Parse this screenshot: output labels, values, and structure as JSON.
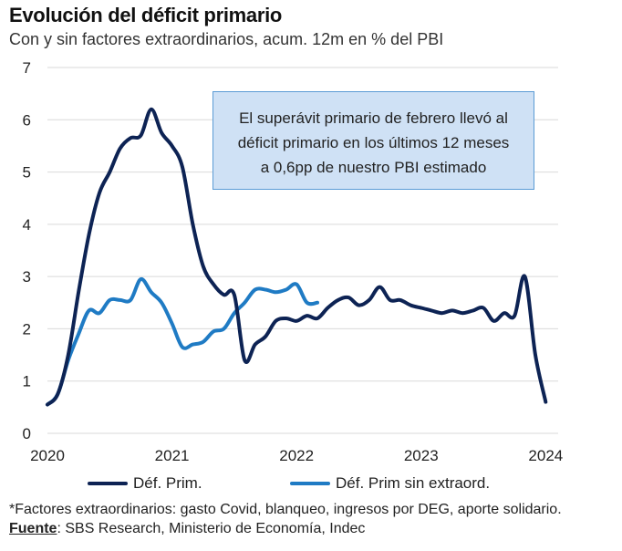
{
  "header": {
    "title": "Evolución del déficit primario",
    "subtitle": "Con y sin factores extraordinarios, acum. 12m en % del PBI"
  },
  "annotation": {
    "lines": [
      "El superávit primario de febrero llevó al",
      "déficit primario en los últimos 12 meses",
      "a 0,6pp de nuestro PBI estimado"
    ]
  },
  "footer": {
    "footnote": "*Factores extraordinarios: gasto Covid, blanqueo, ingresos por DEG, aporte solidario.",
    "source_label": "Fuente",
    "source_text": ": SBS Research, Ministerio de Economía, Indec"
  },
  "colors": {
    "dark_navy": "#0d2354",
    "light_blue": "#1f7bc4",
    "grid": "#d9d9d9"
  },
  "chart_data": {
    "type": "line",
    "title": "Evolución del déficit primario",
    "subtitle": "Con y sin factores extraordinarios, acum. 12m en % del PBI",
    "xlim": [
      2020.0,
      2024.1
    ],
    "ylim": [
      0,
      7
    ],
    "x_ticks": [
      "2020",
      "2021",
      "2022",
      "2023",
      "2024"
    ],
    "y_ticks": [
      "0",
      "1",
      "2",
      "3",
      "4",
      "5",
      "6",
      "7"
    ],
    "grid": "horizontal",
    "legend_position": "bottom",
    "series": [
      {
        "name": "Déf. Prim.",
        "color": "#0d2354",
        "points": [
          [
            2020.0,
            0.55
          ],
          [
            2020.083,
            0.75
          ],
          [
            2020.167,
            1.5
          ],
          [
            2020.25,
            2.7
          ],
          [
            2020.333,
            3.8
          ],
          [
            2020.417,
            4.6
          ],
          [
            2020.5,
            5.0
          ],
          [
            2020.583,
            5.45
          ],
          [
            2020.667,
            5.65
          ],
          [
            2020.75,
            5.7
          ],
          [
            2020.833,
            6.2
          ],
          [
            2020.917,
            5.75
          ],
          [
            2021.0,
            5.5
          ],
          [
            2021.083,
            5.1
          ],
          [
            2021.167,
            4.0
          ],
          [
            2021.25,
            3.2
          ],
          [
            2021.333,
            2.85
          ],
          [
            2021.417,
            2.65
          ],
          [
            2021.5,
            2.65
          ],
          [
            2021.583,
            1.4
          ],
          [
            2021.667,
            1.7
          ],
          [
            2021.75,
            1.85
          ],
          [
            2021.833,
            2.15
          ],
          [
            2021.917,
            2.2
          ],
          [
            2022.0,
            2.15
          ],
          [
            2022.083,
            2.25
          ],
          [
            2022.167,
            2.2
          ],
          [
            2022.25,
            2.4
          ],
          [
            2022.333,
            2.55
          ],
          [
            2022.417,
            2.6
          ],
          [
            2022.5,
            2.45
          ],
          [
            2022.583,
            2.55
          ],
          [
            2022.667,
            2.8
          ],
          [
            2022.75,
            2.55
          ],
          [
            2022.833,
            2.55
          ],
          [
            2022.917,
            2.45
          ],
          [
            2023.0,
            2.4
          ],
          [
            2023.083,
            2.35
          ],
          [
            2023.167,
            2.3
          ],
          [
            2023.25,
            2.35
          ],
          [
            2023.333,
            2.3
          ],
          [
            2023.417,
            2.35
          ],
          [
            2023.5,
            2.4
          ],
          [
            2023.583,
            2.15
          ],
          [
            2023.667,
            2.3
          ],
          [
            2023.75,
            2.25
          ],
          [
            2023.833,
            3.0
          ],
          [
            2023.917,
            1.5
          ],
          [
            2024.0,
            0.6
          ]
        ]
      },
      {
        "name": "Déf. Prim sin extraord.",
        "color": "#1f7bc4",
        "points": [
          [
            2020.0,
            0.55
          ],
          [
            2020.083,
            0.75
          ],
          [
            2020.167,
            1.4
          ],
          [
            2020.25,
            1.9
          ],
          [
            2020.333,
            2.35
          ],
          [
            2020.417,
            2.3
          ],
          [
            2020.5,
            2.55
          ],
          [
            2020.583,
            2.55
          ],
          [
            2020.667,
            2.55
          ],
          [
            2020.75,
            2.95
          ],
          [
            2020.833,
            2.7
          ],
          [
            2020.917,
            2.5
          ],
          [
            2021.0,
            2.1
          ],
          [
            2021.083,
            1.65
          ],
          [
            2021.167,
            1.7
          ],
          [
            2021.25,
            1.75
          ],
          [
            2021.333,
            1.95
          ],
          [
            2021.417,
            2.0
          ],
          [
            2021.5,
            2.3
          ],
          [
            2021.583,
            2.5
          ],
          [
            2021.667,
            2.75
          ],
          [
            2021.75,
            2.75
          ],
          [
            2021.833,
            2.7
          ],
          [
            2021.917,
            2.75
          ],
          [
            2022.0,
            2.85
          ],
          [
            2022.083,
            2.5
          ],
          [
            2022.167,
            2.5
          ]
        ]
      }
    ]
  }
}
